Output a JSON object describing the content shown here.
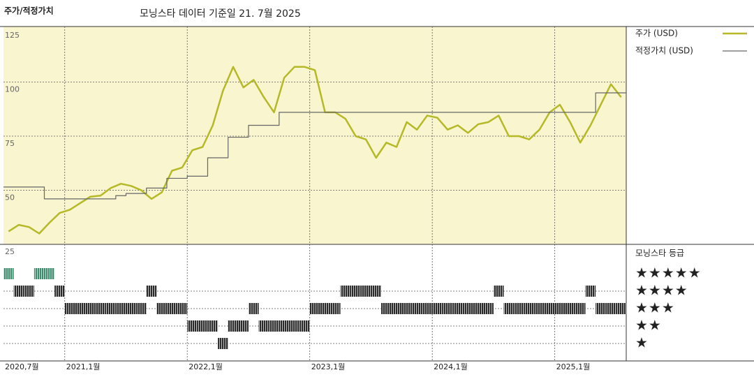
{
  "chart_data": {
    "type": "line",
    "title": "주가/적정가치",
    "subtitle": "모닝스타 데이터 기준일 21. 7월 2025",
    "x": [
      "2020-07",
      "2020-08",
      "2020-09",
      "2020-10",
      "2020-11",
      "2020-12",
      "2021-01",
      "2021-02",
      "2021-03",
      "2021-04",
      "2021-05",
      "2021-06",
      "2021-07",
      "2021-08",
      "2021-09",
      "2021-10",
      "2021-11",
      "2021-12",
      "2022-01",
      "2022-02",
      "2022-03",
      "2022-04",
      "2022-05",
      "2022-06",
      "2022-07",
      "2022-08",
      "2022-09",
      "2022-10",
      "2022-11",
      "2022-12",
      "2023-01",
      "2023-02",
      "2023-03",
      "2023-04",
      "2023-05",
      "2023-06",
      "2023-07",
      "2023-08",
      "2023-09",
      "2023-10",
      "2023-11",
      "2023-12",
      "2024-01",
      "2024-02",
      "2024-03",
      "2024-04",
      "2024-05",
      "2024-06",
      "2024-07",
      "2024-08",
      "2024-09",
      "2024-10",
      "2024-11",
      "2024-12",
      "2025-01",
      "2025-02",
      "2025-03",
      "2025-04",
      "2025-05",
      "2025-06",
      "2025-07"
    ],
    "xlim": [
      "2020-07",
      "2025-08"
    ],
    "xticks": [
      {
        "value": "2020-07",
        "label": "2020,7월"
      },
      {
        "value": "2021-01",
        "label": "2021,1월"
      },
      {
        "value": "2022-01",
        "label": "2022,1월"
      },
      {
        "value": "2023-01",
        "label": "2023,1월"
      },
      {
        "value": "2024-01",
        "label": "2024,1월"
      },
      {
        "value": "2025-01",
        "label": "2025,1월"
      }
    ],
    "ylim": [
      25,
      125
    ],
    "yticks": [
      25,
      50,
      75,
      100,
      125
    ],
    "grid": true,
    "series": [
      {
        "name": "주가 (USD)",
        "color": "#b5b827",
        "values": [
          31,
          34,
          33,
          30,
          35,
          39.5,
          41,
          44,
          47,
          47.5,
          51,
          53,
          52,
          50,
          46,
          49,
          59,
          60.5,
          68.5,
          70,
          80,
          96,
          107,
          97.5,
          101,
          93,
          86,
          102,
          107,
          107,
          105.5,
          86,
          86,
          83,
          75,
          73.5,
          65,
          72,
          70,
          81.5,
          78,
          84.5,
          83.5,
          78,
          80,
          76.5,
          80.5,
          81.5,
          84.5,
          75,
          75,
          73.5,
          78,
          86,
          89.5,
          81.5,
          72,
          80,
          89.5,
          99,
          93
        ]
      },
      {
        "name": "적정가치 (USD)",
        "color": "#666666",
        "step": true,
        "values": [
          51.5,
          51.5,
          51.5,
          51.5,
          46,
          46,
          46,
          46,
          46,
          46,
          46,
          47.5,
          48.5,
          48.5,
          51,
          51,
          55.5,
          55.5,
          56.5,
          56.5,
          65,
          65,
          74.5,
          74.5,
          80,
          80,
          80,
          86,
          86,
          86,
          86,
          86,
          86,
          86,
          86,
          86,
          86,
          86,
          86,
          86,
          86,
          86,
          86,
          86,
          86,
          86,
          86,
          86,
          86,
          86,
          86,
          86,
          86,
          86,
          86,
          86,
          86,
          86,
          95,
          95,
          95
        ]
      }
    ],
    "rating_title": "모닝스타 등급",
    "rating_ticks": [
      {
        "value": 5,
        "label": "★★★★★"
      },
      {
        "value": 4,
        "label": "★★★★"
      },
      {
        "value": 3,
        "label": "★★★"
      },
      {
        "value": 2,
        "label": "★★"
      },
      {
        "value": 1,
        "label": "★"
      }
    ],
    "rating_colors": {
      "5": "#3d8c6e",
      "other": "#2a2a2a"
    },
    "ratings": [
      5,
      4,
      4,
      5,
      5,
      4,
      3,
      3,
      3,
      3,
      3,
      3,
      3,
      3,
      4,
      3,
      3,
      3,
      2,
      2,
      2,
      1,
      2,
      2,
      3,
      2,
      2,
      2,
      2,
      2,
      3,
      3,
      3,
      4,
      4,
      4,
      4,
      3,
      3,
      3,
      3,
      3,
      3,
      3,
      3,
      3,
      3,
      3,
      4,
      3,
      3,
      3,
      3,
      3,
      3,
      3,
      3,
      4,
      3,
      3,
      3
    ]
  }
}
